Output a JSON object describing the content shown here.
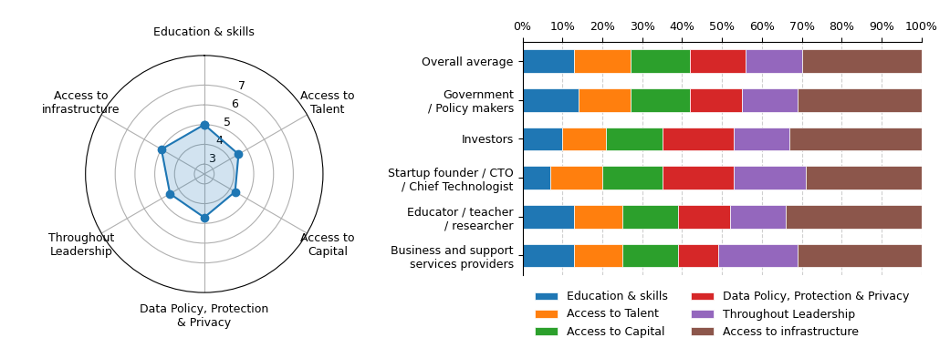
{
  "chart_data": [
    {
      "type": "radar",
      "categories": [
        "Education & skills",
        "Access to\nTalent",
        "Access to\nCapital",
        "Data Policy, Protection\n& Privacy",
        "Throughout\nLeadership",
        "Access to\ninfrastructure"
      ],
      "values": [
        5.0,
        4.5,
        4.3,
        4.7,
        4.5,
        5.0
      ],
      "ylim": [
        2.5,
        8.5
      ],
      "yticks": [
        3,
        4,
        5,
        6,
        7
      ],
      "marker": "o",
      "grid": true
    },
    {
      "type": "bar",
      "orientation": "horizontal",
      "stacked": true,
      "categories": [
        "Overall average",
        "Government\n/ Policy makers",
        "Investors",
        "Startup founder / CTO\n/ Chief Technologist",
        "Educator / teacher\n/ researcher",
        "Business and support\nservices providers"
      ],
      "series": [
        {
          "name": "Education & skills",
          "values": [
            0.13,
            0.14,
            0.1,
            0.07,
            0.13,
            0.13
          ]
        },
        {
          "name": "Access to Talent",
          "values": [
            0.14,
            0.13,
            0.11,
            0.13,
            0.12,
            0.12
          ]
        },
        {
          "name": "Access to Capital",
          "values": [
            0.15,
            0.15,
            0.14,
            0.15,
            0.14,
            0.14
          ]
        },
        {
          "name": "Data Policy, Protection & Privacy",
          "values": [
            0.14,
            0.13,
            0.18,
            0.18,
            0.13,
            0.1
          ]
        },
        {
          "name": "Throughout Leadership",
          "values": [
            0.14,
            0.14,
            0.14,
            0.18,
            0.14,
            0.2
          ]
        },
        {
          "name": "Access to infrastructure",
          "values": [
            0.3,
            0.31,
            0.33,
            0.29,
            0.34,
            0.31
          ]
        }
      ],
      "xlim": [
        0,
        1
      ],
      "xticks": [
        {
          "value": 0.0,
          "label": "0%"
        },
        {
          "value": 0.1,
          "label": "10%"
        },
        {
          "value": 0.2,
          "label": "20%"
        },
        {
          "value": 0.3,
          "label": "30%"
        },
        {
          "value": 0.4,
          "label": "40%"
        },
        {
          "value": 0.5,
          "label": "50%"
        },
        {
          "value": 0.6,
          "label": "60%"
        },
        {
          "value": 0.7,
          "label": "70%"
        },
        {
          "value": 0.8,
          "label": "80%"
        },
        {
          "value": 0.9,
          "label": "90%"
        },
        {
          "value": 1.0,
          "label": "100%"
        }
      ],
      "grid": "x",
      "legend": "lower center"
    }
  ]
}
